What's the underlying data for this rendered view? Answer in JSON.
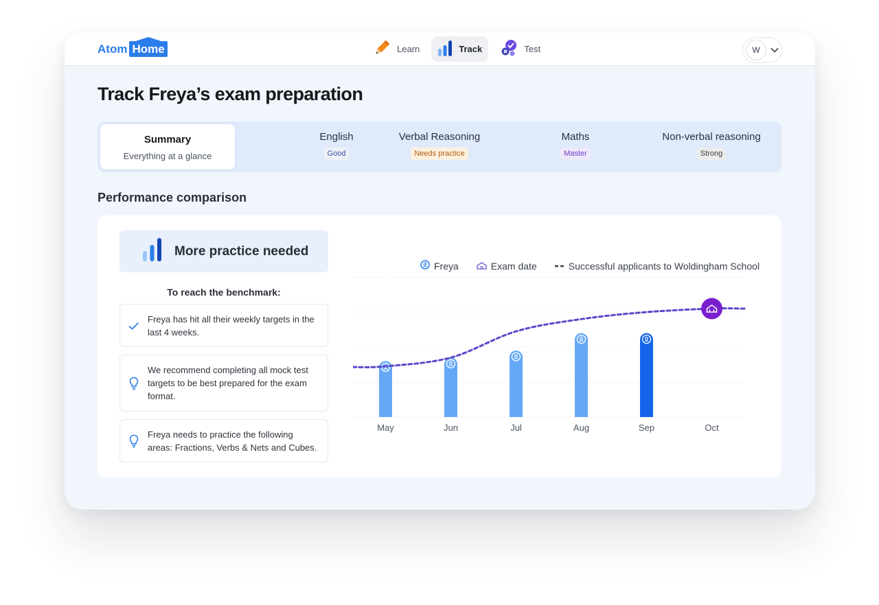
{
  "app": {
    "logo_left": "Atom",
    "logo_right": "Home",
    "nav": [
      {
        "label": "Learn",
        "icon": "pencil-icon",
        "active": false
      },
      {
        "label": "Track",
        "icon": "bar-chart-icon",
        "active": true
      },
      {
        "label": "Test",
        "icon": "test-check-icon",
        "active": false
      }
    ],
    "user_initial": "W"
  },
  "page": {
    "title": "Track Freya’s exam preparation"
  },
  "tabs": [
    {
      "title": "Summary",
      "subtitle": "Everything at a glance"
    },
    {
      "title": "English",
      "badge": "Good",
      "badge_bg": "#eef1f6",
      "badge_fg": "#3b4da8"
    },
    {
      "title": "Verbal Reasoning",
      "badge": "Needs practice",
      "badge_bg": "#fdf1de",
      "badge_fg": "#b35a12"
    },
    {
      "title": "Maths",
      "badge": "Master",
      "badge_bg": "#efe8fb",
      "badge_fg": "#6b3fc3"
    },
    {
      "title": "Non-verbal reasoning",
      "badge": "Strong",
      "badge_bg": "#ececec",
      "badge_fg": "#3d3d3d"
    }
  ],
  "performance": {
    "section_title": "Performance comparison",
    "status": "More practice needed",
    "benchmark_heading": "To reach the benchmark:",
    "tips": [
      {
        "icon": "check-icon",
        "text": "Freya has hit all their weekly targets in the last 4 weeks."
      },
      {
        "icon": "lightbulb-icon",
        "text": "We recommend completing all mock test targets to be best prepared for the exam format."
      },
      {
        "icon": "lightbulb-icon",
        "text": "Freya needs to practice the following areas: Fractions, Verbs & Nets and Cubes."
      }
    ]
  },
  "legend": {
    "freya": "Freya",
    "exam": "Exam date",
    "benchmark": "Successful applicants to Woldingham School"
  },
  "colors": {
    "bar": "#64a8f6",
    "bar_current": "#1565ea",
    "benchmark_line": "#5b47c9",
    "exam_marker": "#7a1fd0",
    "accent": "#2b7de9"
  },
  "chart_data": {
    "type": "bar",
    "categories": [
      "May",
      "Jun",
      "Jul",
      "Aug",
      "Sep",
      "Oct"
    ],
    "series": [
      {
        "name": "Freya",
        "values": [
          1.6,
          1.7,
          1.9,
          2.4,
          2.4,
          null
        ]
      },
      {
        "name": "Successful applicants to Woldingham School",
        "type": "line",
        "style": "dashed",
        "values": [
          1.45,
          1.7,
          2.45,
          2.8,
          3.0,
          3.1
        ]
      }
    ],
    "exam_marker": {
      "category": "Oct",
      "label": "Exam date"
    },
    "current_category": "Sep",
    "ylim": [
      0,
      4
    ],
    "grid": true
  }
}
